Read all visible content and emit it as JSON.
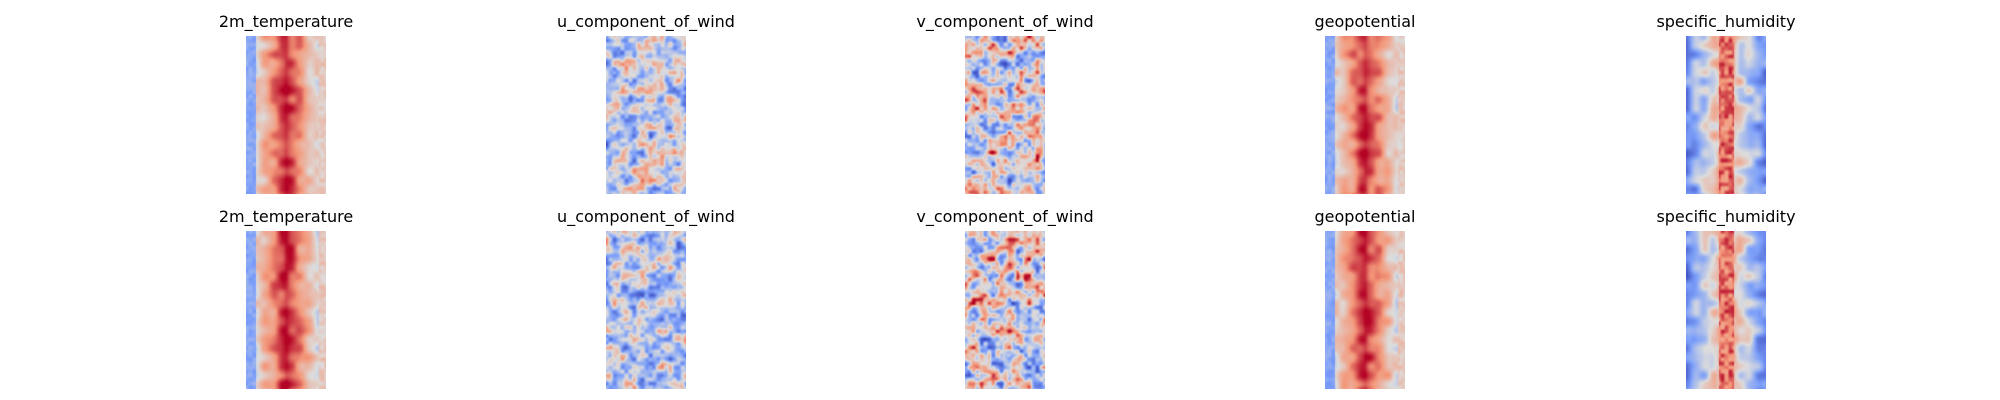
{
  "chart_data": {
    "type": "heatmap",
    "colormap": "coolwarm",
    "axes": "off",
    "rows": 2,
    "columns": 5,
    "panels": [
      {
        "title": "2m_temperature",
        "pattern": "warm-band"
      },
      {
        "title": "u_component_of_wind",
        "pattern": "mixed-cool"
      },
      {
        "title": "v_component_of_wind",
        "pattern": "speckled"
      },
      {
        "title": "geopotential",
        "pattern": "warm-band"
      },
      {
        "title": "specific_humidity",
        "pattern": "narrow-core"
      },
      {
        "title": "2m_temperature",
        "pattern": "warm-band"
      },
      {
        "title": "u_component_of_wind",
        "pattern": "mixed-cool"
      },
      {
        "title": "v_component_of_wind",
        "pattern": "speckled"
      },
      {
        "title": "geopotential",
        "pattern": "warm-band"
      },
      {
        "title": "specific_humidity",
        "pattern": "narrow-core"
      }
    ]
  }
}
